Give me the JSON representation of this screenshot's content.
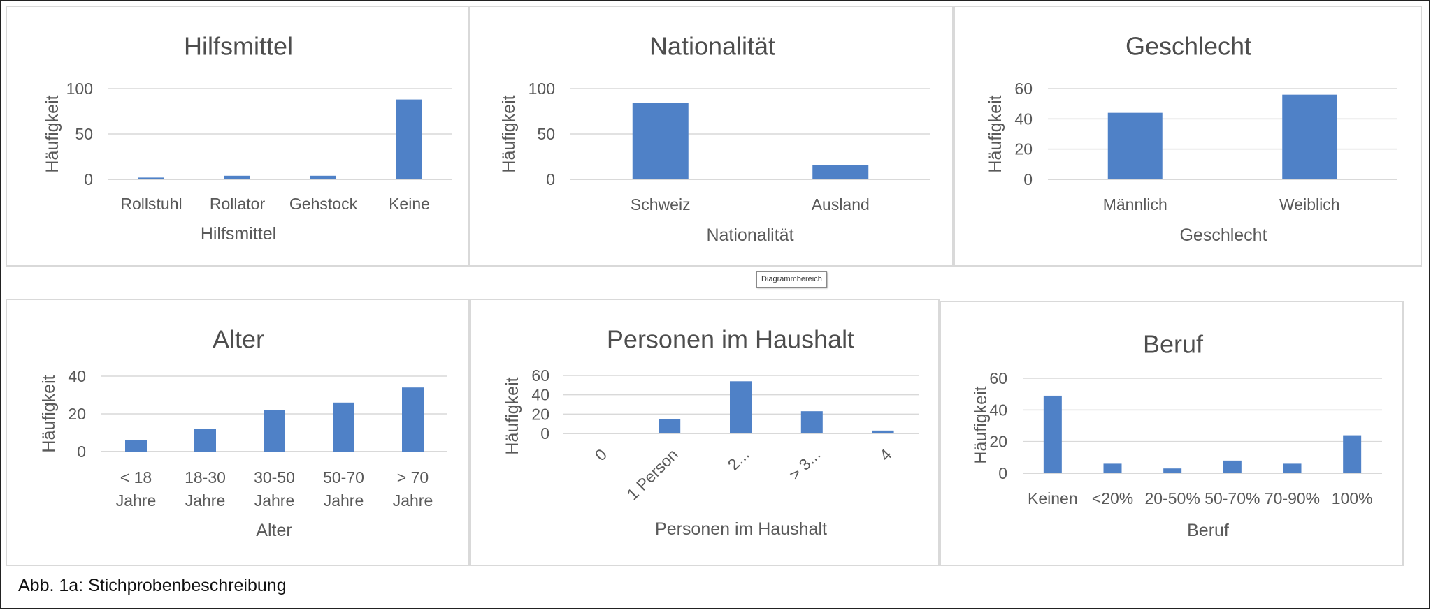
{
  "caption": "Abb. 1a: Stichprobenbeschreibung",
  "tooltip": "Diagrammbereich",
  "colors": {
    "bar": "#4f81c7",
    "grid": "#d9d9d9",
    "text": "#595959",
    "title": "#4d4d4d"
  },
  "chart_data": [
    {
      "id": "hilfsmittel",
      "type": "bar",
      "title": "Hilfsmittel",
      "xlabel": "Hilfsmittel",
      "ylabel": "Häufigkeit",
      "categories": [
        "Rollstuhl",
        "Rollator",
        "Gehstock",
        "Keine"
      ],
      "values": [
        2,
        4,
        4,
        88
      ],
      "yticks": [
        0,
        50,
        100
      ],
      "ylim": [
        0,
        100
      ],
      "grid": true
    },
    {
      "id": "nationalitaet",
      "type": "bar",
      "title": "Nationalität",
      "xlabel": "Nationalität",
      "ylabel": "Häufigkeit",
      "categories": [
        "Schweiz",
        "Ausland"
      ],
      "values": [
        84,
        16
      ],
      "yticks": [
        0,
        50,
        100
      ],
      "ylim": [
        0,
        100
      ],
      "grid": true
    },
    {
      "id": "geschlecht",
      "type": "bar",
      "title": "Geschlecht",
      "xlabel": "Geschlecht",
      "ylabel": "Häufigkeit",
      "categories": [
        "Männlich",
        "Weiblich"
      ],
      "values": [
        44,
        56
      ],
      "yticks": [
        0,
        20,
        40,
        60
      ],
      "ylim": [
        0,
        60
      ],
      "grid": true
    },
    {
      "id": "alter",
      "type": "bar",
      "title": "Alter",
      "xlabel": "Alter",
      "ylabel": "Häufigkeit",
      "categories": [
        [
          "< 18",
          "Jahre"
        ],
        [
          "18-30",
          "Jahre"
        ],
        [
          "30-50",
          "Jahre"
        ],
        [
          "50-70",
          "Jahre"
        ],
        [
          "> 70",
          "Jahre"
        ]
      ],
      "values": [
        6,
        12,
        22,
        26,
        34
      ],
      "yticks": [
        0,
        20,
        40
      ],
      "ylim": [
        0,
        40
      ],
      "grid": true
    },
    {
      "id": "haushalt",
      "type": "bar",
      "title": "Personen im Haushalt",
      "xlabel": "Personen im Haushalt",
      "ylabel": "Häufigkeit",
      "categories": [
        "0",
        "1 Person",
        "2...",
        "> 3...",
        "4"
      ],
      "values": [
        0,
        15,
        54,
        23,
        3
      ],
      "yticks": [
        0,
        20,
        40,
        60
      ],
      "ylim": [
        0,
        60
      ],
      "grid": true,
      "rotated_labels": true
    },
    {
      "id": "beruf",
      "type": "bar",
      "title": "Beruf",
      "xlabel": "Beruf",
      "ylabel": "Häufigkeit",
      "categories": [
        "Keinen",
        "<20%",
        "20-50%",
        "50-70%",
        "70-90%",
        "100%"
      ],
      "values": [
        49,
        6,
        3,
        8,
        6,
        24
      ],
      "yticks": [
        0,
        20,
        40,
        60
      ],
      "ylim": [
        0,
        60
      ],
      "grid": true
    }
  ]
}
